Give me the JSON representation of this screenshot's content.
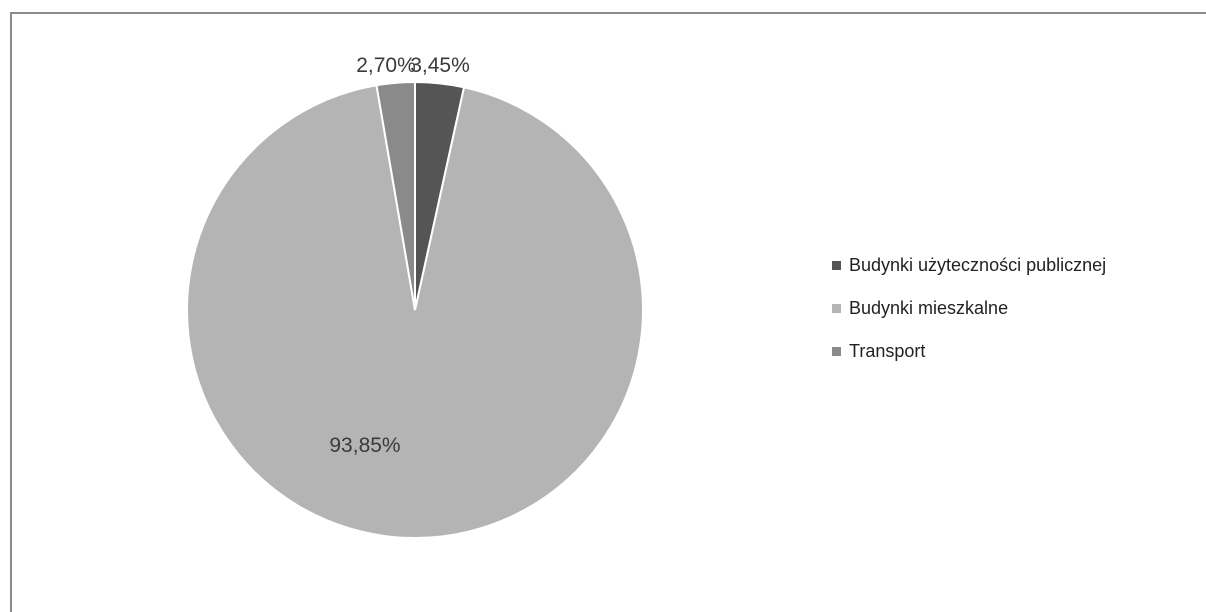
{
  "chart_data": {
    "type": "pie",
    "title": "",
    "categories": [
      "Budynki użyteczności publicznej",
      "Budynki mieszkalne",
      "Transport"
    ],
    "values": [
      3.45,
      93.85,
      2.7
    ],
    "data_labels": [
      "3,45%",
      "93,85%",
      "2,70%"
    ],
    "colors": [
      "#555555",
      "#b4b4b4",
      "#8a8a8a"
    ],
    "legend": {
      "position": "right",
      "items": [
        {
          "label": "Budynki użyteczności publicznej",
          "color": "#555555"
        },
        {
          "label": "Budynki mieszkalne",
          "color": "#b4b4b4"
        },
        {
          "label": "Transport",
          "color": "#8a8a8a"
        }
      ]
    }
  }
}
